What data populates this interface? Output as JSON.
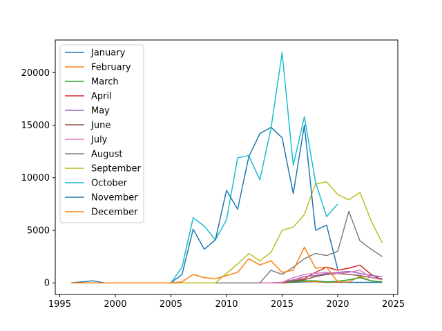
{
  "chart_data": {
    "type": "line",
    "title": "",
    "xlabel": "",
    "ylabel": "",
    "x": [
      1996,
      1997,
      1998,
      1999,
      2000,
      2001,
      2002,
      2003,
      2004,
      2005,
      2006,
      2007,
      2008,
      2009,
      2010,
      2011,
      2012,
      2013,
      2014,
      2015,
      2016,
      2017,
      2018,
      2019,
      2020,
      2021,
      2022,
      2023,
      2024
    ],
    "xlim": [
      1994.6,
      2025.4
    ],
    "ylim": [
      -1100,
      23100
    ],
    "xticks": [
      1995,
      2000,
      2005,
      2010,
      2015,
      2020,
      2025
    ],
    "yticks": [
      0,
      5000,
      10000,
      15000,
      20000
    ],
    "grid": false,
    "legend": "top-left",
    "series": [
      {
        "name": "January",
        "color": "#1f77b4",
        "values": [
          0,
          100,
          200,
          0,
          0,
          0,
          0,
          0,
          0,
          0,
          0,
          0,
          0,
          0,
          0,
          0,
          0,
          0,
          0,
          0,
          50,
          100,
          100,
          50,
          50,
          50,
          50,
          50,
          50
        ]
      },
      {
        "name": "February",
        "color": "#ff7f0e",
        "values": [
          0,
          0,
          0,
          0,
          0,
          0,
          0,
          0,
          0,
          0,
          0,
          0,
          0,
          0,
          0,
          0,
          0,
          0,
          0,
          0,
          100,
          150,
          100,
          80,
          80,
          100,
          600,
          200,
          100
        ]
      },
      {
        "name": "March",
        "color": "#2ca02c",
        "values": [
          0,
          0,
          0,
          0,
          0,
          0,
          0,
          0,
          0,
          0,
          0,
          0,
          0,
          0,
          0,
          0,
          0,
          0,
          0,
          0,
          100,
          200,
          200,
          100,
          150,
          300,
          500,
          200,
          100
        ]
      },
      {
        "name": "April",
        "color": "#d62728",
        "values": [
          0,
          0,
          0,
          0,
          0,
          0,
          0,
          0,
          0,
          0,
          0,
          0,
          0,
          0,
          0,
          0,
          0,
          0,
          0,
          0,
          200,
          400,
          1000,
          1500,
          1200,
          1400,
          1700,
          800,
          300
        ]
      },
      {
        "name": "May",
        "color": "#9467bd",
        "values": [
          0,
          0,
          0,
          0,
          0,
          0,
          0,
          0,
          0,
          0,
          0,
          0,
          0,
          0,
          0,
          0,
          0,
          0,
          0,
          50,
          300,
          600,
          700,
          900,
          1000,
          1100,
          900,
          700,
          600
        ]
      },
      {
        "name": "June",
        "color": "#8c564b",
        "values": [
          0,
          0,
          0,
          0,
          0,
          0,
          0,
          0,
          0,
          0,
          0,
          0,
          0,
          0,
          0,
          0,
          0,
          0,
          0,
          50,
          200,
          300,
          600,
          800,
          900,
          800,
          700,
          500,
          400
        ]
      },
      {
        "name": "July",
        "color": "#e377c2",
        "values": [
          0,
          0,
          0,
          0,
          0,
          0,
          0,
          0,
          0,
          0,
          0,
          0,
          0,
          0,
          0,
          0,
          0,
          0,
          0,
          50,
          500,
          800,
          900,
          1000,
          900,
          1000,
          1200,
          500,
          300
        ]
      },
      {
        "name": "August",
        "color": "#7f7f7f",
        "values": [
          0,
          0,
          0,
          0,
          0,
          0,
          0,
          0,
          0,
          0,
          0,
          0,
          0,
          0,
          0,
          0,
          0,
          0,
          1200,
          800,
          1500,
          2300,
          2800,
          2600,
          3000,
          6800,
          4000,
          3200,
          2500
        ]
      },
      {
        "name": "September",
        "color": "#bcbd22",
        "values": [
          0,
          0,
          0,
          0,
          0,
          0,
          0,
          0,
          0,
          0,
          0,
          0,
          0,
          0,
          900,
          1800,
          2800,
          2100,
          2900,
          5000,
          5300,
          6500,
          9400,
          9600,
          8400,
          7900,
          8600,
          5900,
          3800
        ]
      },
      {
        "name": "October",
        "color": "#17becf",
        "values": [
          0,
          0,
          0,
          0,
          0,
          0,
          0,
          0,
          0,
          0,
          1500,
          6200,
          5400,
          4100,
          6000,
          11900,
          12100,
          9800,
          14700,
          21900,
          11200,
          15800,
          9600,
          6300,
          7500,
          null,
          null,
          null,
          null
        ]
      },
      {
        "name": "November",
        "color": "#1f77b4",
        "values": [
          0,
          0,
          0,
          0,
          0,
          0,
          0,
          0,
          0,
          0,
          800,
          5100,
          3200,
          4100,
          8800,
          7000,
          12000,
          14200,
          14800,
          13800,
          8500,
          15000,
          5000,
          5500,
          1300,
          null,
          null,
          null,
          null
        ]
      },
      {
        "name": "December",
        "color": "#ff7f0e",
        "values": [
          0,
          0,
          0,
          0,
          0,
          0,
          0,
          0,
          0,
          0,
          100,
          800,
          500,
          400,
          700,
          1000,
          2300,
          1700,
          2100,
          1000,
          1200,
          3400,
          1400,
          1500,
          100,
          null,
          null,
          null,
          null
        ]
      }
    ]
  }
}
